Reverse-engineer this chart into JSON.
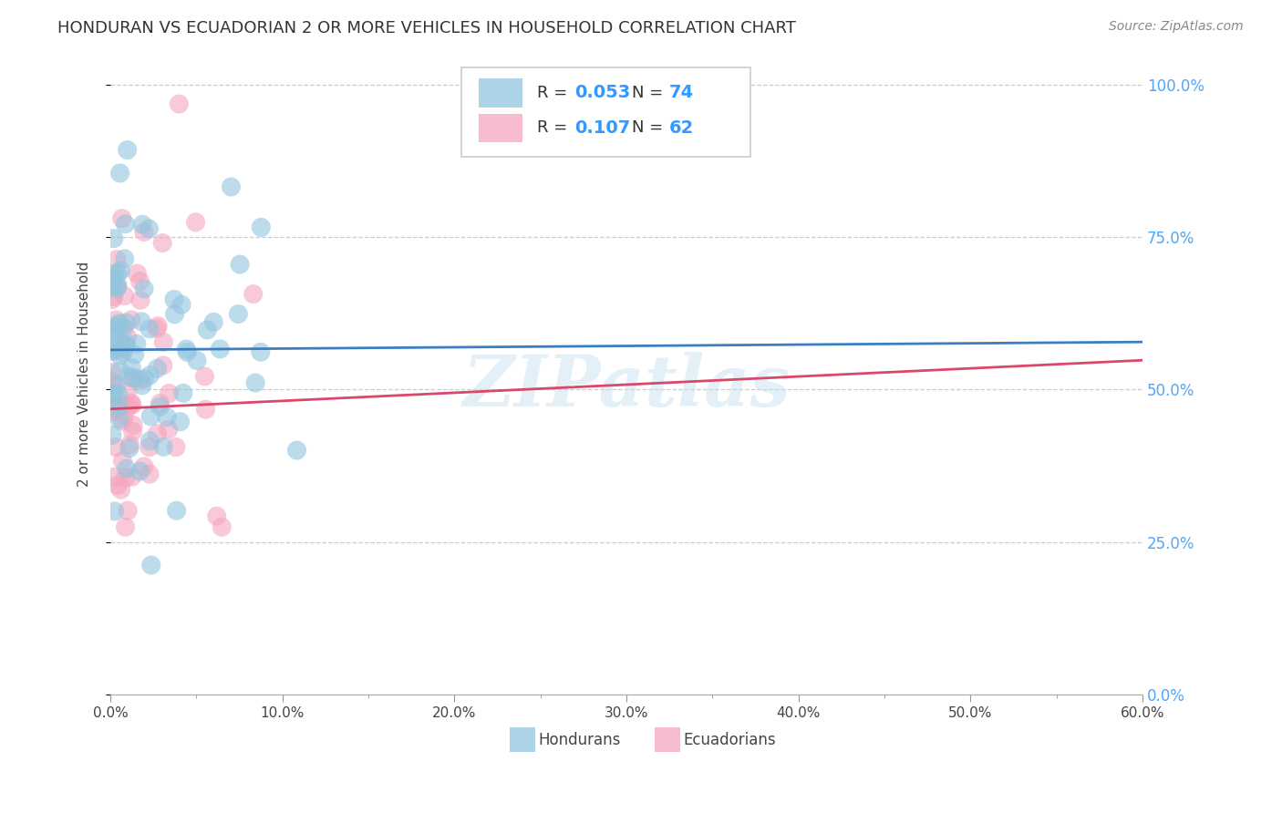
{
  "title": "HONDURAN VS ECUADORIAN 2 OR MORE VEHICLES IN HOUSEHOLD CORRELATION CHART",
  "source": "Source: ZipAtlas.com",
  "ylabel": "2 or more Vehicles in Household",
  "xlabel_ticks": [
    "0.0%",
    "10.0%",
    "20.0%",
    "30.0%",
    "40.0%",
    "50.0%",
    "60.0%"
  ],
  "ylabel_ticks_right": [
    "100.0%",
    "75.0%",
    "50.0%",
    "25.0%",
    "0.0%"
  ],
  "xlim": [
    0.0,
    0.6
  ],
  "ylim": [
    0.0,
    1.05
  ],
  "watermark": "ZIPatlas",
  "legend_blue_label": "Hondurans",
  "legend_pink_label": "Ecuadorians",
  "blue_R": 0.053,
  "blue_N": 74,
  "pink_R": 0.107,
  "pink_N": 62,
  "blue_color": "#92c5de",
  "pink_color": "#f4a5be",
  "blue_line_color": "#3a7fc1",
  "pink_line_color": "#d9476a",
  "grid_color": "#cccccc",
  "background_color": "#ffffff",
  "title_fontsize": 13,
  "axis_label_fontsize": 11,
  "tick_fontsize": 11,
  "source_fontsize": 10,
  "blue_line_start_y": 0.565,
  "blue_line_end_y": 0.578,
  "pink_line_start_y": 0.468,
  "pink_line_end_y": 0.548
}
